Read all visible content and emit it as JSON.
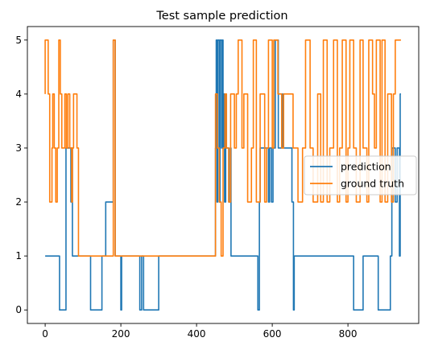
{
  "chart_data": {
    "type": "line",
    "title": "Test sample prediction",
    "xlabel": "",
    "ylabel": "",
    "xlim": [
      -47,
      987
    ],
    "ylim": [
      -0.25,
      5.25
    ],
    "xticks": [
      0,
      200,
      400,
      600,
      800
    ],
    "yticks": [
      0,
      1,
      2,
      3,
      4,
      5
    ],
    "grid": false,
    "legend_position": "center-right",
    "series": [
      {
        "name": "prediction",
        "color": "#1f77b4",
        "points": [
          [
            0,
            1
          ],
          [
            38,
            1
          ],
          [
            38,
            0
          ],
          [
            55,
            0
          ],
          [
            55,
            3
          ],
          [
            68,
            3
          ],
          [
            68,
            2
          ],
          [
            70,
            2
          ],
          [
            70,
            3
          ],
          [
            72,
            3
          ],
          [
            72,
            1
          ],
          [
            120,
            1
          ],
          [
            120,
            0
          ],
          [
            150,
            0
          ],
          [
            150,
            1
          ],
          [
            160,
            1
          ],
          [
            160,
            2
          ],
          [
            180,
            2
          ],
          [
            180,
            5
          ],
          [
            185,
            5
          ],
          [
            185,
            1
          ],
          [
            200,
            1
          ],
          [
            200,
            0
          ],
          [
            202,
            0
          ],
          [
            202,
            1
          ],
          [
            250,
            1
          ],
          [
            250,
            0
          ],
          [
            255,
            0
          ],
          [
            255,
            1
          ],
          [
            260,
            1
          ],
          [
            260,
            0
          ],
          [
            300,
            0
          ],
          [
            300,
            1
          ],
          [
            450,
            1
          ],
          [
            450,
            3
          ],
          [
            452,
            3
          ],
          [
            452,
            5
          ],
          [
            454,
            5
          ],
          [
            454,
            2
          ],
          [
            456,
            2
          ],
          [
            456,
            5
          ],
          [
            460,
            5
          ],
          [
            460,
            2
          ],
          [
            462,
            2
          ],
          [
            462,
            5
          ],
          [
            466,
            5
          ],
          [
            466,
            3
          ],
          [
            468,
            3
          ],
          [
            468,
            5
          ],
          [
            470,
            5
          ],
          [
            470,
            3
          ],
          [
            472,
            3
          ],
          [
            472,
            4
          ],
          [
            474,
            4
          ],
          [
            474,
            2
          ],
          [
            477,
            2
          ],
          [
            477,
            4
          ],
          [
            479,
            4
          ],
          [
            479,
            3
          ],
          [
            485,
            3
          ],
          [
            485,
            2
          ],
          [
            489,
            2
          ],
          [
            489,
            3
          ],
          [
            491,
            3
          ],
          [
            491,
            1
          ],
          [
            562,
            1
          ],
          [
            562,
            0
          ],
          [
            566,
            0
          ],
          [
            566,
            2
          ],
          [
            568,
            2
          ],
          [
            568,
            3
          ],
          [
            590,
            3
          ],
          [
            590,
            2
          ],
          [
            593,
            2
          ],
          [
            593,
            3
          ],
          [
            598,
            3
          ],
          [
            598,
            2
          ],
          [
            602,
            2
          ],
          [
            602,
            3
          ],
          [
            608,
            3
          ],
          [
            608,
            5
          ],
          [
            616,
            5
          ],
          [
            616,
            3
          ],
          [
            625,
            3
          ],
          [
            625,
            4
          ],
          [
            628,
            4
          ],
          [
            628,
            3
          ],
          [
            652,
            3
          ],
          [
            652,
            2
          ],
          [
            656,
            2
          ],
          [
            656,
            0
          ],
          [
            658,
            0
          ],
          [
            658,
            1
          ],
          [
            815,
            1
          ],
          [
            815,
            0
          ],
          [
            840,
            0
          ],
          [
            840,
            1
          ],
          [
            880,
            1
          ],
          [
            880,
            0
          ],
          [
            912,
            0
          ],
          [
            912,
            1
          ],
          [
            916,
            1
          ],
          [
            916,
            3
          ],
          [
            925,
            3
          ],
          [
            925,
            2
          ],
          [
            930,
            2
          ],
          [
            930,
            3
          ],
          [
            936,
            3
          ],
          [
            936,
            1
          ],
          [
            938,
            1
          ],
          [
            938,
            4
          ],
          [
            940,
            4
          ]
        ]
      },
      {
        "name": "ground truth",
        "color": "#ff7f0e",
        "points": [
          [
            0,
            4
          ],
          [
            0,
            5
          ],
          [
            8,
            5
          ],
          [
            8,
            4
          ],
          [
            12,
            4
          ],
          [
            12,
            2
          ],
          [
            18,
            2
          ],
          [
            18,
            3
          ],
          [
            20,
            3
          ],
          [
            20,
            4
          ],
          [
            24,
            4
          ],
          [
            24,
            3
          ],
          [
            28,
            3
          ],
          [
            28,
            2
          ],
          [
            32,
            2
          ],
          [
            32,
            3
          ],
          [
            36,
            3
          ],
          [
            36,
            5
          ],
          [
            40,
            5
          ],
          [
            40,
            4
          ],
          [
            44,
            4
          ],
          [
            44,
            3
          ],
          [
            52,
            3
          ],
          [
            52,
            4
          ],
          [
            56,
            4
          ],
          [
            56,
            3
          ],
          [
            60,
            3
          ],
          [
            60,
            4
          ],
          [
            65,
            4
          ],
          [
            65,
            3
          ],
          [
            70,
            3
          ],
          [
            70,
            2
          ],
          [
            72,
            2
          ],
          [
            72,
            3
          ],
          [
            75,
            3
          ],
          [
            75,
            4
          ],
          [
            84,
            4
          ],
          [
            84,
            3
          ],
          [
            88,
            3
          ],
          [
            88,
            1
          ],
          [
            180,
            1
          ],
          [
            180,
            5
          ],
          [
            185,
            5
          ],
          [
            185,
            1
          ],
          [
            450,
            1
          ],
          [
            450,
            4
          ],
          [
            455,
            4
          ],
          [
            455,
            3
          ],
          [
            460,
            3
          ],
          [
            460,
            2
          ],
          [
            465,
            2
          ],
          [
            465,
            1
          ],
          [
            470,
            1
          ],
          [
            470,
            3
          ],
          [
            475,
            3
          ],
          [
            475,
            4
          ],
          [
            479,
            4
          ],
          [
            479,
            3
          ],
          [
            485,
            3
          ],
          [
            485,
            2
          ],
          [
            490,
            2
          ],
          [
            490,
            4
          ],
          [
            500,
            4
          ],
          [
            500,
            3
          ],
          [
            505,
            3
          ],
          [
            505,
            4
          ],
          [
            510,
            4
          ],
          [
            510,
            5
          ],
          [
            520,
            5
          ],
          [
            520,
            3
          ],
          [
            525,
            3
          ],
          [
            525,
            4
          ],
          [
            535,
            4
          ],
          [
            535,
            2
          ],
          [
            545,
            2
          ],
          [
            545,
            3
          ],
          [
            550,
            3
          ],
          [
            550,
            5
          ],
          [
            558,
            5
          ],
          [
            558,
            2
          ],
          [
            568,
            2
          ],
          [
            568,
            4
          ],
          [
            580,
            4
          ],
          [
            580,
            2
          ],
          [
            585,
            2
          ],
          [
            585,
            3
          ],
          [
            590,
            3
          ],
          [
            590,
            5
          ],
          [
            600,
            5
          ],
          [
            600,
            3
          ],
          [
            604,
            3
          ],
          [
            604,
            5
          ],
          [
            615,
            5
          ],
          [
            615,
            4
          ],
          [
            625,
            4
          ],
          [
            625,
            3
          ],
          [
            630,
            3
          ],
          [
            630,
            4
          ],
          [
            655,
            4
          ],
          [
            655,
            3
          ],
          [
            668,
            3
          ],
          [
            668,
            2
          ],
          [
            680,
            2
          ],
          [
            680,
            3
          ],
          [
            688,
            3
          ],
          [
            688,
            5
          ],
          [
            700,
            5
          ],
          [
            700,
            3
          ],
          [
            708,
            3
          ],
          [
            708,
            2
          ],
          [
            720,
            2
          ],
          [
            720,
            4
          ],
          [
            728,
            4
          ],
          [
            728,
            2
          ],
          [
            735,
            2
          ],
          [
            735,
            5
          ],
          [
            745,
            5
          ],
          [
            745,
            2
          ],
          [
            752,
            2
          ],
          [
            752,
            3
          ],
          [
            762,
            3
          ],
          [
            762,
            5
          ],
          [
            772,
            5
          ],
          [
            772,
            2
          ],
          [
            778,
            2
          ],
          [
            778,
            3
          ],
          [
            785,
            3
          ],
          [
            785,
            5
          ],
          [
            795,
            5
          ],
          [
            795,
            2
          ],
          [
            800,
            2
          ],
          [
            800,
            3
          ],
          [
            805,
            3
          ],
          [
            805,
            5
          ],
          [
            815,
            5
          ],
          [
            815,
            3
          ],
          [
            822,
            3
          ],
          [
            822,
            2
          ],
          [
            832,
            2
          ],
          [
            832,
            5
          ],
          [
            840,
            5
          ],
          [
            840,
            3
          ],
          [
            850,
            3
          ],
          [
            850,
            2
          ],
          [
            855,
            2
          ],
          [
            855,
            5
          ],
          [
            865,
            5
          ],
          [
            865,
            4
          ],
          [
            870,
            4
          ],
          [
            870,
            3
          ],
          [
            875,
            3
          ],
          [
            875,
            5
          ],
          [
            885,
            5
          ],
          [
            885,
            2
          ],
          [
            890,
            2
          ],
          [
            890,
            5
          ],
          [
            898,
            5
          ],
          [
            898,
            2
          ],
          [
            905,
            2
          ],
          [
            905,
            4
          ],
          [
            915,
            4
          ],
          [
            915,
            2
          ],
          [
            920,
            2
          ],
          [
            920,
            4
          ],
          [
            925,
            4
          ],
          [
            925,
            5
          ],
          [
            940,
            5
          ]
        ]
      }
    ]
  }
}
